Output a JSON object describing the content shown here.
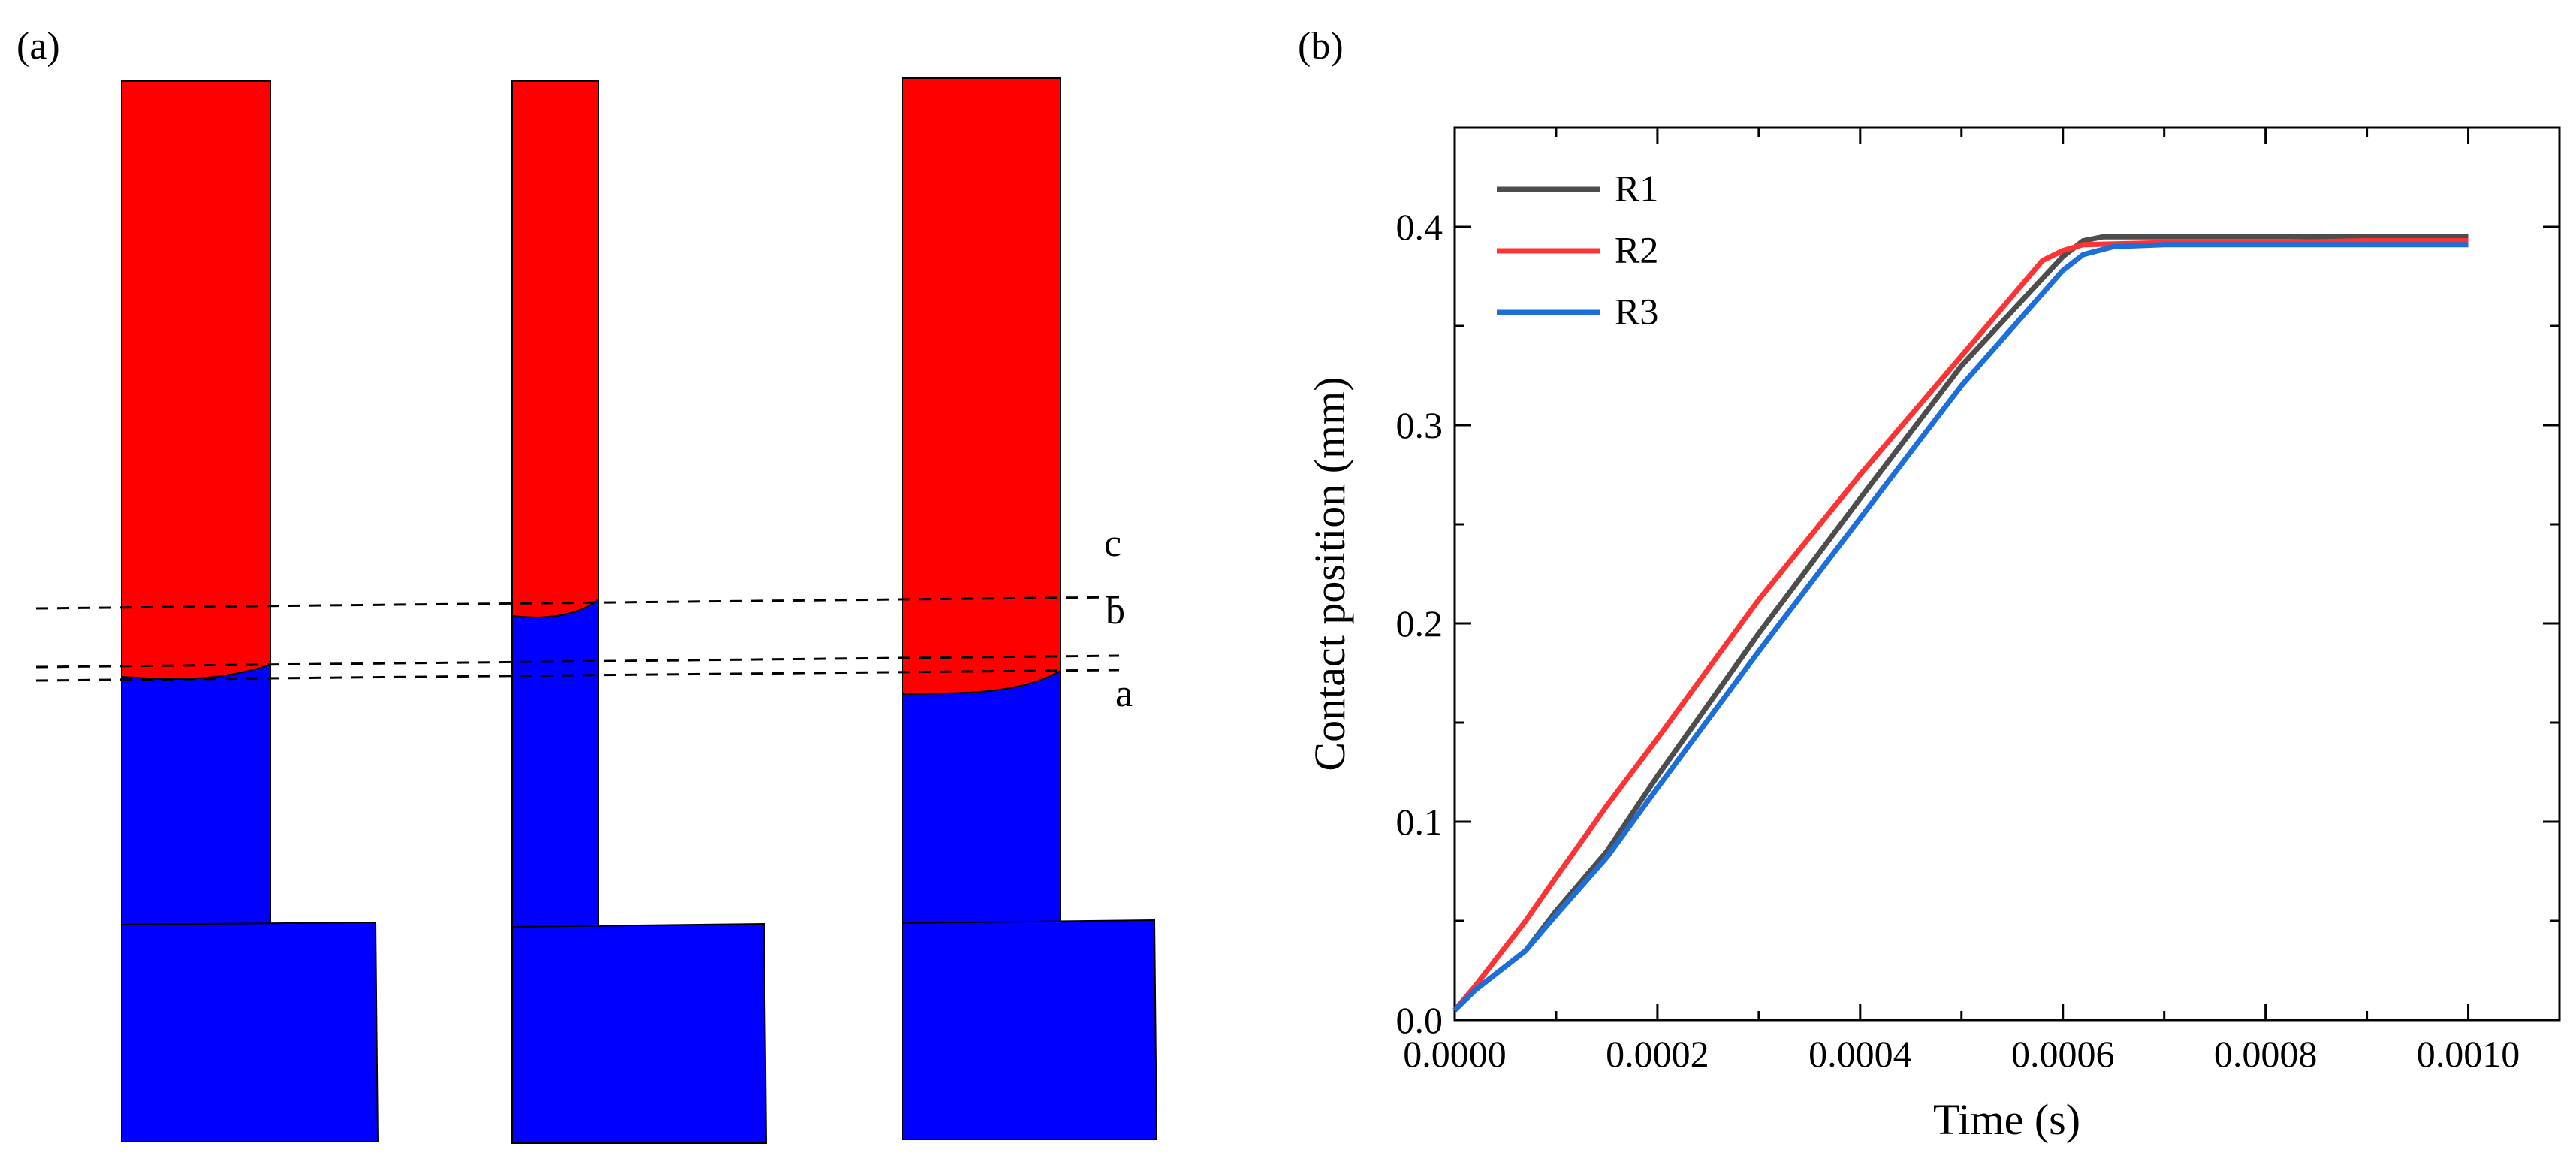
{
  "panel_a": {
    "label": "(a)",
    "line_labels": [
      "c",
      "b",
      "a"
    ],
    "colors": {
      "upper": "#ff0000",
      "lower": "#0000ff",
      "outline": "#000000"
    }
  },
  "panel_b": {
    "label": "(b)"
  },
  "chart_data": {
    "type": "line",
    "title": "",
    "xlabel": "Time (s)",
    "ylabel": "Contact position (mm)",
    "xlim": [
      0,
      0.00109
    ],
    "ylim": [
      0,
      0.45
    ],
    "xticks": [
      0,
      0.0002,
      0.0004,
      0.0006,
      0.0008,
      0.001
    ],
    "xtick_labels": [
      "0.0000",
      "0.0002",
      "0.0004",
      "0.0006",
      "0.0008",
      "0.0010"
    ],
    "yticks": [
      0,
      0.1,
      0.2,
      0.3,
      0.4
    ],
    "ytick_labels": [
      "0.0",
      "0.1",
      "0.2",
      "0.3",
      "0.4"
    ],
    "legend_position": "top-left",
    "series": [
      {
        "name": "R1",
        "color": "#4d4d4d",
        "x": [
          0,
          2e-05,
          7e-05,
          0.0001,
          0.00015,
          0.0002,
          0.0003,
          0.0004,
          0.0005,
          0.0006,
          0.00062,
          0.00064,
          0.0007,
          0.0008,
          0.0009,
          0.001
        ],
        "y": [
          0.005,
          0.015,
          0.035,
          0.055,
          0.085,
          0.123,
          0.195,
          0.263,
          0.33,
          0.385,
          0.393,
          0.395,
          0.395,
          0.395,
          0.395,
          0.395
        ]
      },
      {
        "name": "R2",
        "color": "#ff3333",
        "x": [
          0,
          2e-05,
          7e-05,
          0.0001,
          0.00015,
          0.0002,
          0.0003,
          0.0004,
          0.0005,
          0.00058,
          0.0006,
          0.00062,
          0.0007,
          0.0008,
          0.0009,
          0.001
        ],
        "y": [
          0.005,
          0.017,
          0.05,
          0.072,
          0.108,
          0.142,
          0.212,
          0.275,
          0.335,
          0.383,
          0.388,
          0.391,
          0.392,
          0.392,
          0.393,
          0.393
        ]
      },
      {
        "name": "R3",
        "color": "#1a6fdb",
        "x": [
          0,
          2e-05,
          7e-05,
          0.0001,
          0.00015,
          0.0002,
          0.0003,
          0.0004,
          0.0005,
          0.0006,
          0.00062,
          0.00065,
          0.0007,
          0.0008,
          0.0009,
          0.001
        ],
        "y": [
          0.005,
          0.015,
          0.035,
          0.053,
          0.082,
          0.117,
          0.186,
          0.253,
          0.32,
          0.378,
          0.386,
          0.39,
          0.391,
          0.391,
          0.391,
          0.391
        ]
      }
    ]
  }
}
